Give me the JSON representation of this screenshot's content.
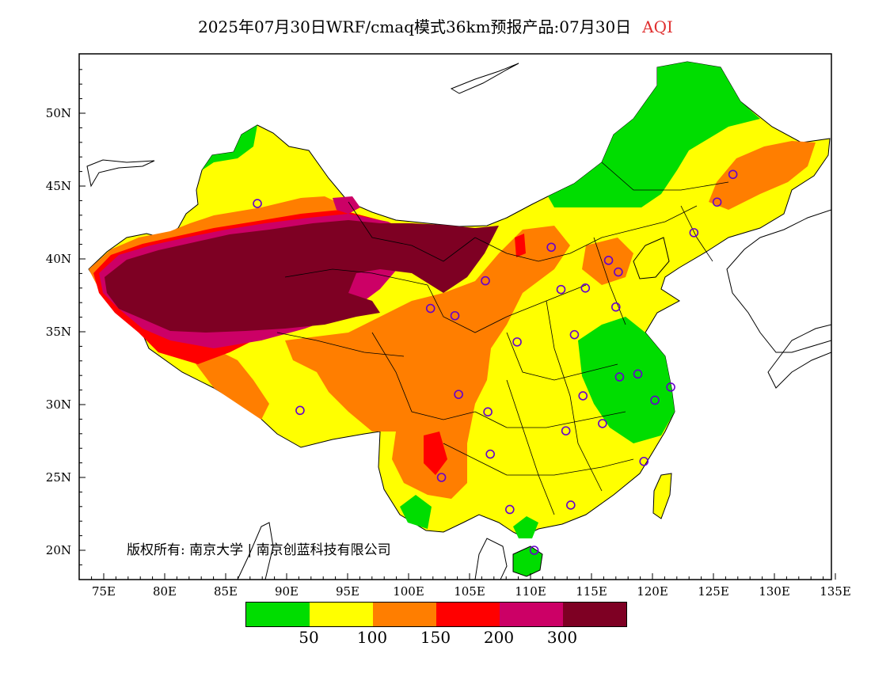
{
  "header": {
    "title": "2025年07月30日WRF/cmaq模式36km预报产品:07月30日",
    "variable": "AQI"
  },
  "map": {
    "lat_range": [
      18,
      54
    ],
    "lon_range": [
      73,
      135
    ],
    "y_labels": [
      "50N",
      "45N",
      "40N",
      "35N",
      "30N",
      "25N",
      "20N"
    ],
    "x_labels": [
      "75E",
      "80E",
      "85E",
      "90E",
      "95E",
      "100E",
      "105E",
      "110E",
      "115E",
      "120E",
      "125E",
      "130E",
      "135E"
    ],
    "copyright": "版权所有: 南京大学 | 南京创蓝科技有限公司",
    "stations": [
      [
        87.6,
        43.8
      ],
      [
        91.1,
        29.6
      ],
      [
        101.8,
        36.6
      ],
      [
        103.8,
        36.1
      ],
      [
        106.3,
        38.5
      ],
      [
        111.7,
        40.8
      ],
      [
        112.5,
        37.9
      ],
      [
        114.5,
        38.0
      ],
      [
        116.4,
        39.9
      ],
      [
        117.2,
        39.1
      ],
      [
        113.6,
        34.8
      ],
      [
        108.9,
        34.3
      ],
      [
        104.1,
        30.7
      ],
      [
        106.5,
        29.5
      ],
      [
        106.7,
        26.6
      ],
      [
        102.7,
        25.0
      ],
      [
        108.3,
        22.8
      ],
      [
        113.3,
        23.1
      ],
      [
        110.3,
        20.0
      ],
      [
        112.9,
        28.2
      ],
      [
        115.9,
        28.7
      ],
      [
        114.3,
        30.6
      ],
      [
        117.3,
        31.9
      ],
      [
        118.8,
        32.1
      ],
      [
        120.2,
        30.3
      ],
      [
        121.5,
        31.2
      ],
      [
        119.3,
        26.1
      ],
      [
        117.0,
        36.7
      ],
      [
        123.4,
        41.8
      ],
      [
        125.3,
        43.9
      ],
      [
        126.6,
        45.8
      ]
    ]
  },
  "colors": {
    "green": "#00dd00",
    "yellow": "#ffff00",
    "orange": "#ff7e00",
    "red": "#ff0000",
    "purple": "#cc0066",
    "maroon": "#7e0023",
    "aqi_title": "#e03030",
    "station": "#6600cc"
  },
  "legend": {
    "colors": [
      "#00dd00",
      "#ffff00",
      "#ff7e00",
      "#ff0000",
      "#cc0066",
      "#7e0023"
    ],
    "labels": [
      "50",
      "100",
      "150",
      "200",
      "300"
    ]
  }
}
